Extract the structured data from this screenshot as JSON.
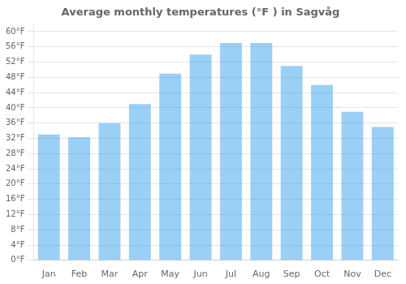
{
  "chart_data": {
    "type": "bar",
    "title": "Average monthly temperatures (°F ) in Sagvåg",
    "categories": [
      "Jan",
      "Feb",
      "Mar",
      "Apr",
      "May",
      "Jun",
      "Jul",
      "Aug",
      "Sep",
      "Oct",
      "Nov",
      "Dec"
    ],
    "values": [
      33.0,
      32.3,
      36.0,
      41.0,
      49.0,
      54.0,
      57.0,
      57.0,
      51.0,
      46.0,
      39.0,
      35.0
    ],
    "ylim": [
      0,
      62
    ],
    "yticks": [
      {
        "value": 0,
        "label": "0°F"
      },
      {
        "value": 4,
        "label": "4°F"
      },
      {
        "value": 8,
        "label": "8°F"
      },
      {
        "value": 12,
        "label": "12°F"
      },
      {
        "value": 16,
        "label": "16°F"
      },
      {
        "value": 20,
        "label": "20°F"
      },
      {
        "value": 24,
        "label": "24°F"
      },
      {
        "value": 28,
        "label": "28°F"
      },
      {
        "value": 32,
        "label": "32°F"
      },
      {
        "value": 36,
        "label": "36°F"
      },
      {
        "value": 40,
        "label": "40°F"
      },
      {
        "value": 44,
        "label": "44°F"
      },
      {
        "value": 48,
        "label": "48°F"
      },
      {
        "value": 52,
        "label": "52°F"
      },
      {
        "value": 56,
        "label": "56°F"
      },
      {
        "value": 60,
        "label": "60°F"
      }
    ],
    "grid": true
  }
}
